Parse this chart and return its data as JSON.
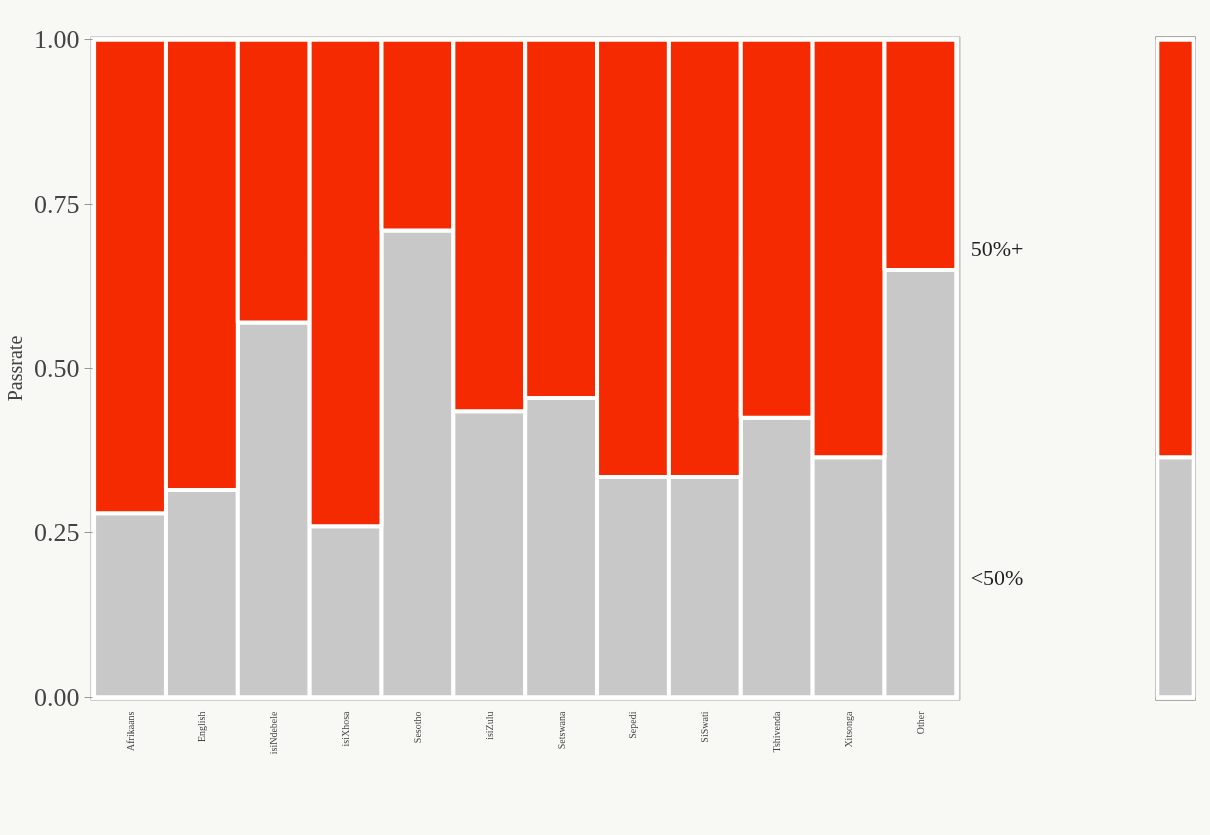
{
  "chart_data": [
    {
      "type": "bar",
      "stacked": true,
      "ylabel": "Passrate",
      "categories": [
        "Afrikaans",
        "English",
        "isiNdebele",
        "isiXhosa",
        "Sesotho",
        "isiZulu",
        "Setswana",
        "Sepedi",
        "SiSwati",
        "Tshivenda",
        "Xitsonga",
        "Other"
      ],
      "series": [
        {
          "name": "<50%",
          "color": "#c8c8c8",
          "values": [
            0.28,
            0.315,
            0.57,
            0.26,
            0.71,
            0.435,
            0.455,
            0.335,
            0.335,
            0.425,
            0.365,
            0.65
          ]
        },
        {
          "name": "50%+",
          "color": "#f52a00",
          "values": [
            0.72,
            0.685,
            0.43,
            0.74,
            0.29,
            0.565,
            0.545,
            0.665,
            0.665,
            0.575,
            0.635,
            0.35
          ]
        }
      ],
      "ylim": [
        0,
        1
      ],
      "yticks": [
        {
          "value": 0,
          "label": "0.00"
        },
        {
          "value": 0.25,
          "label": "0.25"
        },
        {
          "value": 0.5,
          "label": "0.50"
        },
        {
          "value": 0.75,
          "label": "0.75"
        },
        {
          "value": 1,
          "label": "1.00"
        }
      ],
      "grid": false
    },
    {
      "type": "bar",
      "stacked": true,
      "categories": [
        null
      ],
      "series": [
        {
          "color": "#c8c8c8",
          "values": [
            0.365
          ]
        },
        {
          "color": "#f52a00",
          "values": [
            0.635
          ]
        }
      ],
      "ylim": [
        0,
        1
      ],
      "tick_labels": false,
      "grid": false
    }
  ]
}
